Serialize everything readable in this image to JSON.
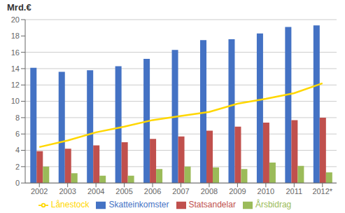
{
  "chart_data": {
    "type": "bar",
    "ylabel": "Mrd.€",
    "categories": [
      "2002",
      "2003",
      "2004",
      "2005",
      "2006",
      "2007",
      "2008",
      "2009",
      "2010",
      "2011",
      "2012*"
    ],
    "series": [
      {
        "name": "Skatteinkomster",
        "color": "#4472C4",
        "values": [
          14.1,
          13.6,
          13.8,
          14.3,
          15.2,
          16.3,
          17.5,
          17.6,
          18.3,
          19.1,
          19.3
        ]
      },
      {
        "name": "Statsandelar",
        "color": "#C0504D",
        "values": [
          3.9,
          4.2,
          4.6,
          5.0,
          5.4,
          5.7,
          6.4,
          6.9,
          7.4,
          7.7,
          8.0
        ]
      },
      {
        "name": "Årsbidrag",
        "color": "#9BBB59",
        "values": [
          2.0,
          1.2,
          0.9,
          0.9,
          1.7,
          2.0,
          1.9,
          1.7,
          2.5,
          2.1,
          1.3
        ]
      },
      {
        "name": "Lånestock",
        "color": "#FFD700",
        "type": "line",
        "values": [
          4.4,
          5.2,
          6.2,
          6.9,
          7.7,
          8.2,
          8.7,
          9.7,
          10.3,
          11.0,
          12.2
        ]
      }
    ],
    "ylim": [
      0,
      20
    ],
    "yticks": [
      0,
      2,
      4,
      6,
      8,
      10,
      12,
      14,
      16,
      18,
      20
    ],
    "grid": true,
    "legend": "bottom"
  }
}
